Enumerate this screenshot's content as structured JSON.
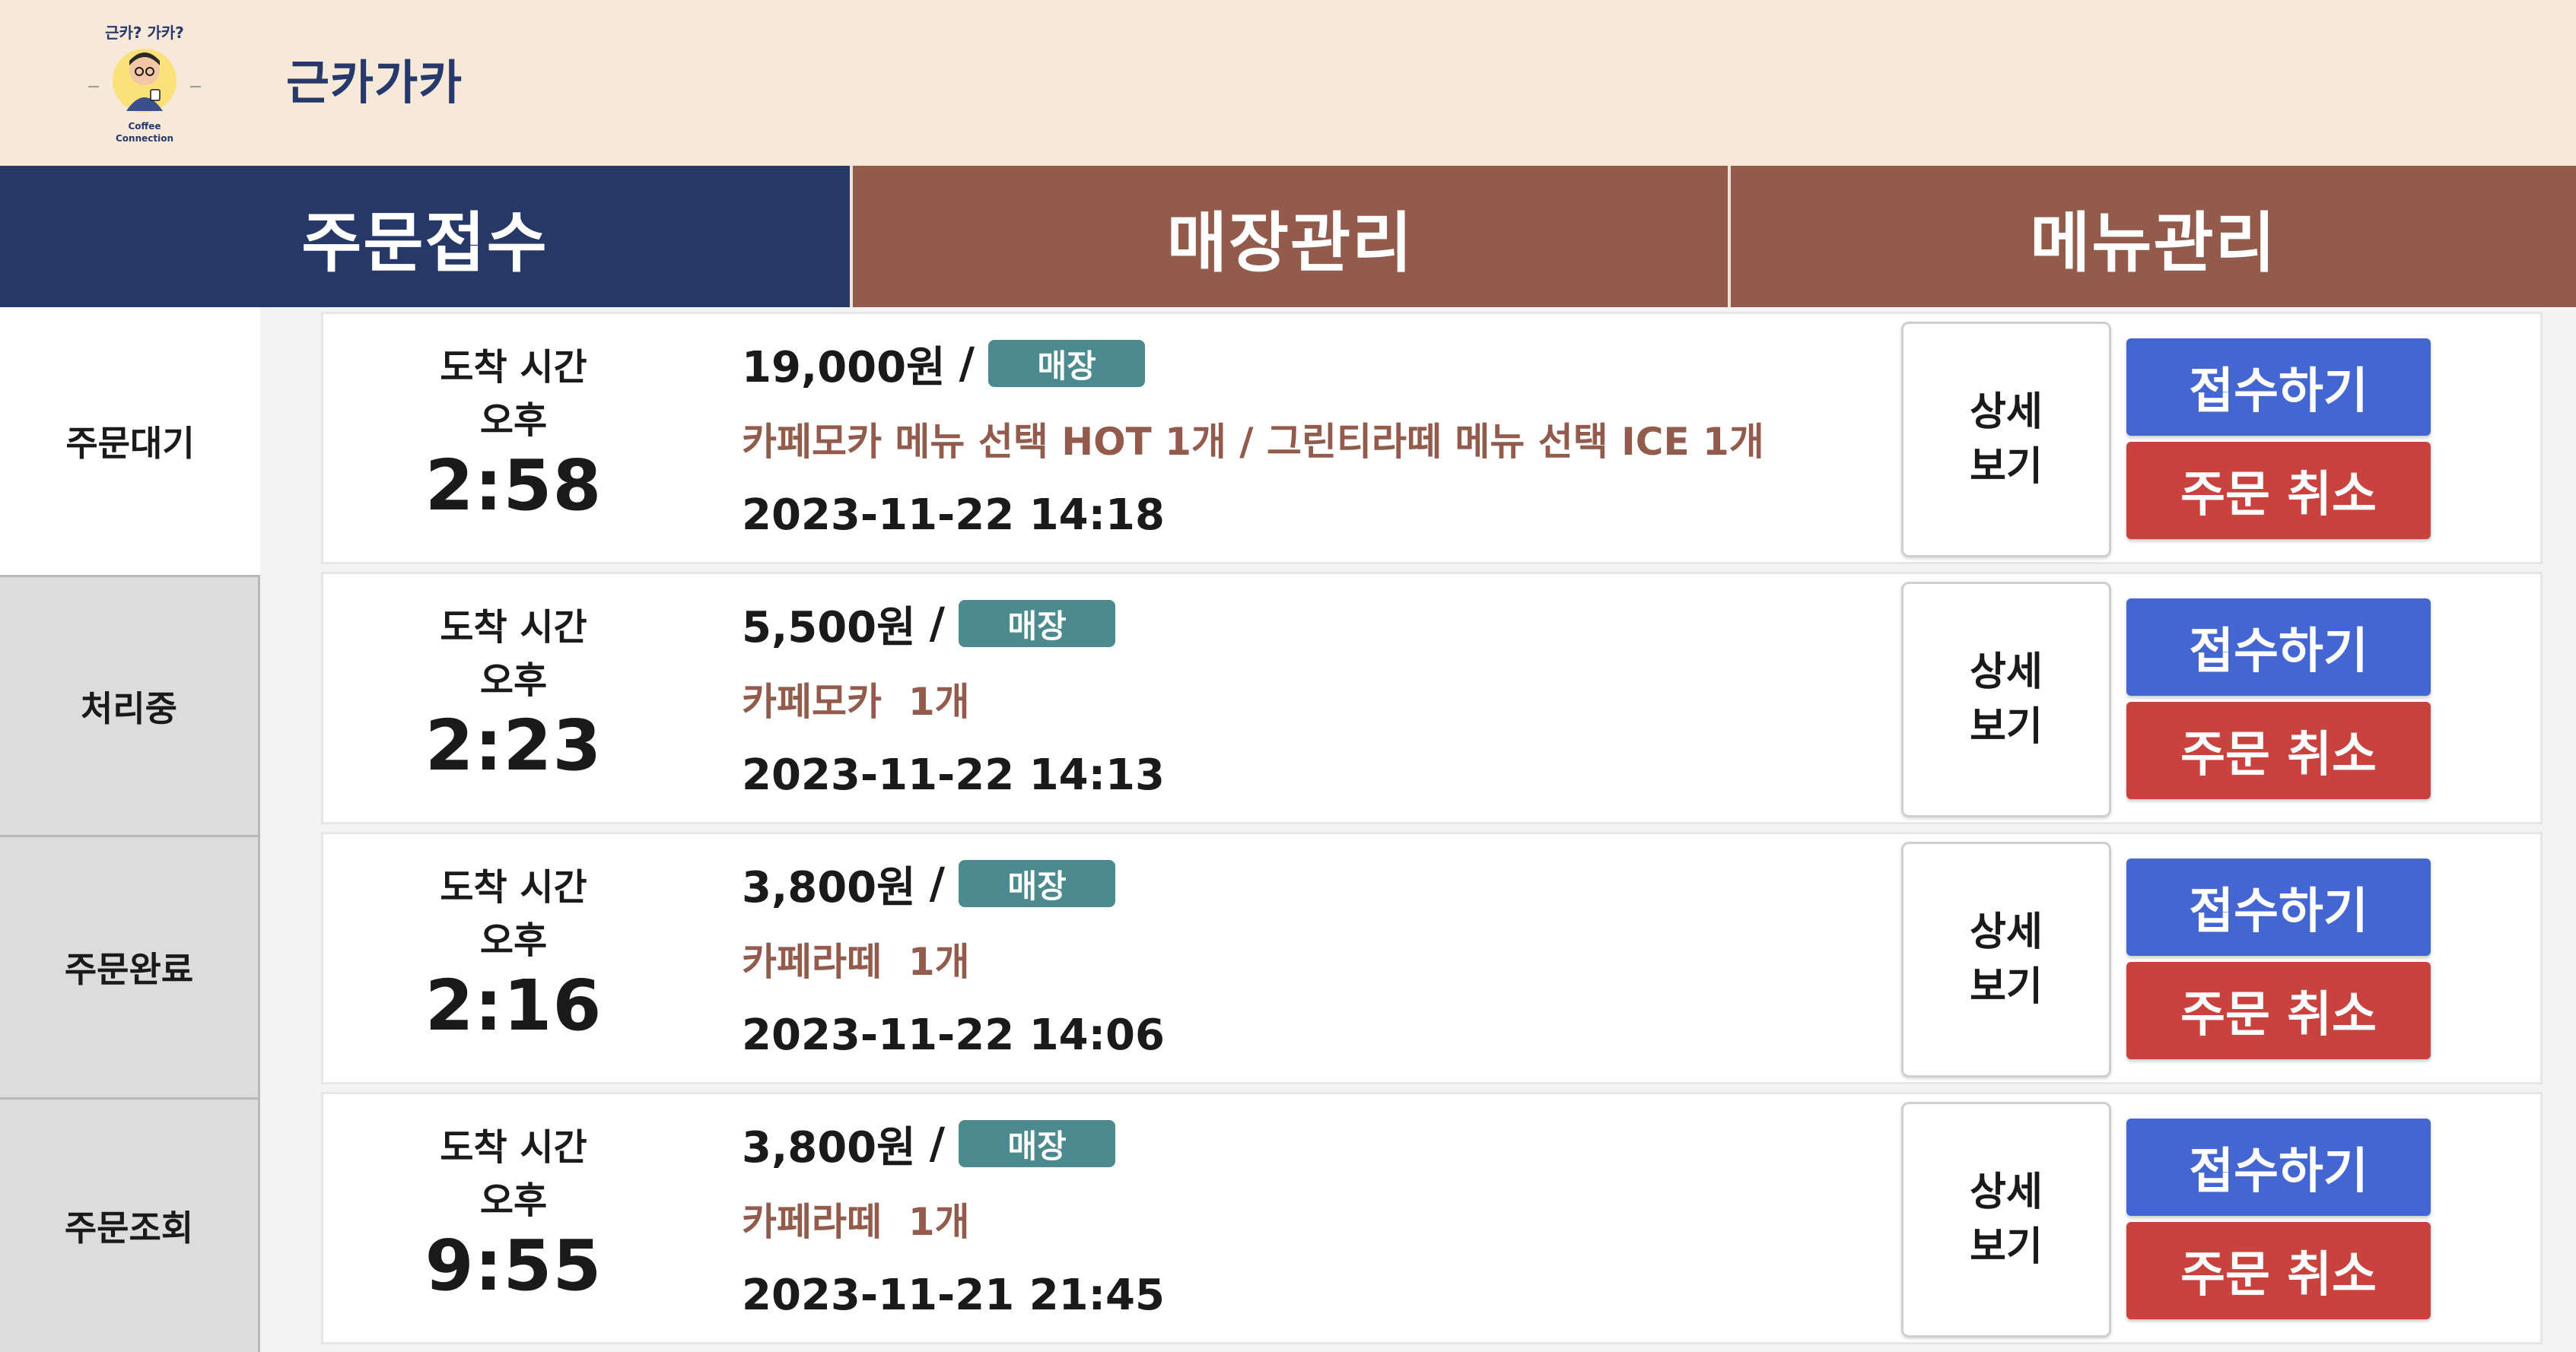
{
  "header": {
    "logo_text_top": "근카? 가카?",
    "logo_text_bottom_1": "Coffee",
    "logo_text_bottom_2": "Connection",
    "title": "근카가카"
  },
  "tabs": [
    {
      "label": "주문접수",
      "active": true
    },
    {
      "label": "매장관리",
      "active": false
    },
    {
      "label": "메뉴관리",
      "active": false
    }
  ],
  "sidebar": {
    "items": [
      {
        "label": "주문대기",
        "active": true
      },
      {
        "label": "처리중",
        "active": false
      },
      {
        "label": "주문완료",
        "active": false
      },
      {
        "label": "주문조회",
        "active": false
      }
    ]
  },
  "orders": [
    {
      "arrival_label": "도착 시간",
      "ampm": "오후",
      "time": "2:58",
      "price": "19,000원",
      "slash": "/",
      "type": "매장",
      "menu": "카페모카 메뉴 선택 HOT 1개 / 그린티라떼 메뉴 선택 ICE 1개",
      "datetime": "2023-11-22 14:18",
      "detail_line1": "상세",
      "detail_line2": "보기",
      "accept": "접수하기",
      "cancel": "주문 취소"
    },
    {
      "arrival_label": "도착 시간",
      "ampm": "오후",
      "time": "2:23",
      "price": "5,500원",
      "slash": "/",
      "type": "매장",
      "menu": "카페모카  1개",
      "datetime": "2023-11-22 14:13",
      "detail_line1": "상세",
      "detail_line2": "보기",
      "accept": "접수하기",
      "cancel": "주문 취소"
    },
    {
      "arrival_label": "도착 시간",
      "ampm": "오후",
      "time": "2:16",
      "price": "3,800원",
      "slash": "/",
      "type": "매장",
      "menu": "카페라떼  1개",
      "datetime": "2023-11-22 14:06",
      "detail_line1": "상세",
      "detail_line2": "보기",
      "accept": "접수하기",
      "cancel": "주문 취소"
    },
    {
      "arrival_label": "도착 시간",
      "ampm": "오후",
      "time": "9:55",
      "price": "3,800원",
      "slash": "/",
      "type": "매장",
      "menu": "카페라떼  1개",
      "datetime": "2023-11-21 21:45",
      "detail_line1": "상세",
      "detail_line2": "보기",
      "accept": "접수하기",
      "cancel": "주문 취소"
    }
  ],
  "colors": {
    "header_bg": "#f6e9da",
    "tab_active": "#253868",
    "tab_inactive": "#925b4c",
    "badge": "#4b8a8f",
    "accept": "#4366d3",
    "cancel": "#c9423e",
    "menu_text": "#925b4c"
  }
}
